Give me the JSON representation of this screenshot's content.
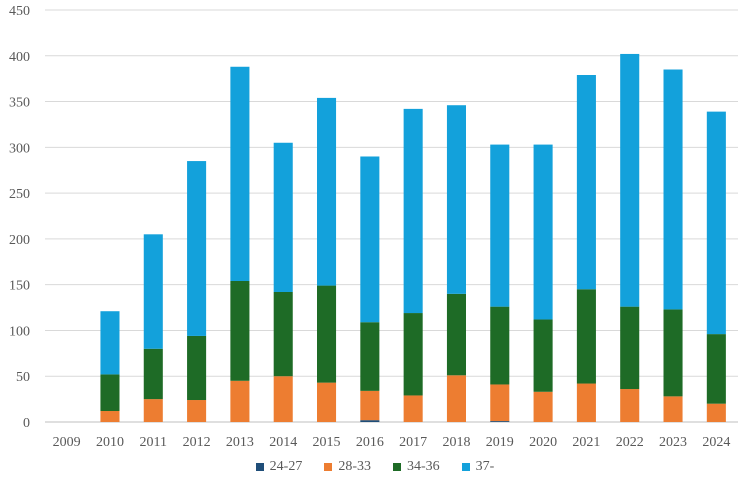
{
  "chart_data": {
    "type": "bar",
    "stacked": true,
    "categories": [
      "2009",
      "2010",
      "2011",
      "2012",
      "2013",
      "2014",
      "2015",
      "2016",
      "2017",
      "2018",
      "2019",
      "2020",
      "2021",
      "2022",
      "2023",
      "2024"
    ],
    "series": [
      {
        "name": "24-27",
        "color": "#1f4e79",
        "values": [
          0,
          0,
          0,
          0,
          0,
          0,
          0,
          2,
          0,
          0,
          1,
          0,
          0,
          0,
          0,
          0
        ]
      },
      {
        "name": "28-33",
        "color": "#ed7d31",
        "values": [
          0,
          12,
          25,
          24,
          45,
          50,
          43,
          32,
          29,
          51,
          40,
          33,
          42,
          36,
          28,
          20
        ]
      },
      {
        "name": "34-36",
        "color": "#1e6b26",
        "values": [
          0,
          40,
          55,
          70,
          109,
          92,
          106,
          75,
          90,
          89,
          85,
          79,
          103,
          90,
          95,
          76
        ]
      },
      {
        "name": "37-",
        "color": "#13a1db",
        "values": [
          0,
          69,
          125,
          191,
          234,
          163,
          205,
          181,
          223,
          206,
          177,
          191,
          234,
          276,
          262,
          243
        ]
      }
    ],
    "ylim": [
      0,
      450
    ],
    "yticks": [
      0,
      50,
      100,
      150,
      200,
      250,
      300,
      350,
      400,
      450
    ],
    "grid": true,
    "legend": "bottom",
    "title": "",
    "xlabel": "",
    "ylabel": ""
  }
}
